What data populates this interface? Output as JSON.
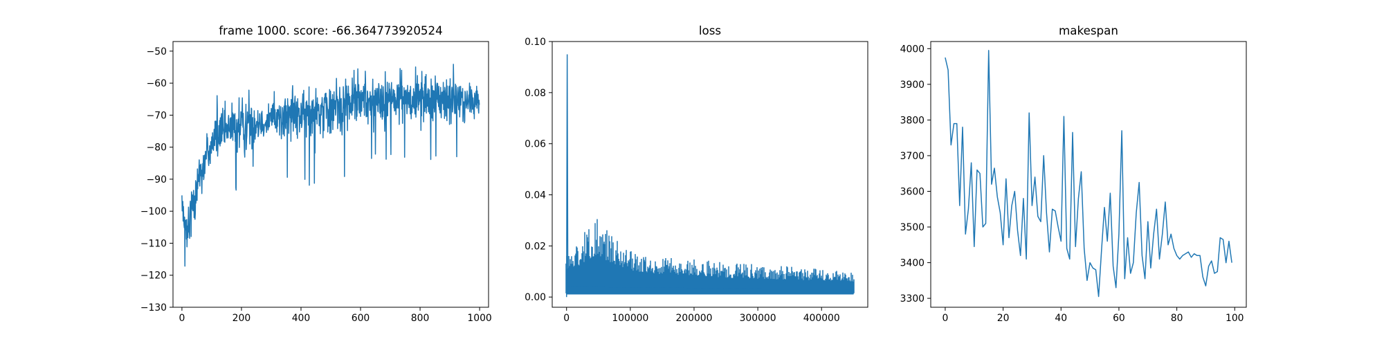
{
  "chart_data": [
    {
      "type": "line",
      "title": "frame 1000. score: -66.364773920524",
      "xlabel": "",
      "ylabel": "",
      "xlim": [
        -30,
        1030
      ],
      "ylim": [
        -130,
        -47
      ],
      "xticks": [
        0,
        200,
        400,
        600,
        800,
        1000
      ],
      "yticks": [
        -130,
        -120,
        -110,
        -100,
        -90,
        -80,
        -70,
        -60,
        -50
      ],
      "grid": false,
      "color": "#1f77b4",
      "x_range": [
        0,
        999
      ],
      "n_points": 1000,
      "series": [
        {
          "x": [
            0,
            10,
            18,
            30,
            50,
            80,
            100,
            120,
            150,
            200,
            250,
            300,
            400,
            500,
            600,
            700,
            800,
            900,
            1000
          ],
          "y": [
            -100,
            -104,
            -110,
            -100,
            -91,
            -84,
            -79,
            -77,
            -75,
            -73,
            -72,
            -71,
            -69,
            -67,
            -65,
            -65,
            -64,
            -65,
            -66
          ]
        }
      ],
      "band_upper": {
        "x": [
          0,
          20,
          50,
          80,
          100,
          150,
          200,
          250,
          300,
          400,
          500,
          600,
          700,
          800,
          900,
          1000
        ],
        "y": [
          -95,
          -93,
          -76,
          -68,
          -62,
          -62,
          -63,
          -61,
          -61,
          -60,
          -58,
          -53,
          -54,
          -52,
          -53,
          -60
        ]
      },
      "band_lower": {
        "x": [
          0,
          20,
          50,
          80,
          100,
          150,
          200,
          250,
          300,
          400,
          500,
          600,
          700,
          800,
          900,
          1000
        ],
        "y": [
          -113,
          -126,
          -110,
          -101,
          -93,
          -86,
          -100,
          -85,
          -86,
          -93,
          -93,
          -86,
          -84,
          -84,
          -86,
          -77
        ]
      }
    },
    {
      "type": "line",
      "title": "loss",
      "xlabel": "",
      "ylabel": "",
      "xlim": [
        -22500,
        472500
      ],
      "ylim": [
        -0.004,
        0.1
      ],
      "xticks": [
        0,
        100000,
        200000,
        300000,
        400000
      ],
      "yticks": [
        0.0,
        0.02,
        0.04,
        0.06,
        0.08,
        0.1
      ],
      "ytick_labels": [
        "0.00",
        "0.02",
        "0.04",
        "0.06",
        "0.08",
        "0.10"
      ],
      "grid": false,
      "color": "#1f77b4",
      "spike": {
        "x": 1000,
        "y": 0.095
      },
      "series": [
        {
          "x": [
            0,
            20000,
            50000,
            80000,
            100000,
            150000,
            200000,
            250000,
            300000,
            350000,
            400000,
            450000
          ],
          "y": [
            0.006,
            0.007,
            0.008,
            0.007,
            0.006,
            0.005,
            0.005,
            0.004,
            0.004,
            0.004,
            0.004,
            0.004
          ]
        }
      ],
      "band_upper": {
        "x": [
          0,
          20000,
          45000,
          80000,
          100000,
          150000,
          200000,
          250000,
          300000,
          350000,
          400000,
          450000
        ],
        "y": [
          0.018,
          0.022,
          0.032,
          0.022,
          0.018,
          0.016,
          0.015,
          0.014,
          0.013,
          0.012,
          0.011,
          0.01
        ]
      },
      "band_lower": {
        "x": [
          0,
          450000
        ],
        "y": [
          0.001,
          0.001
        ]
      }
    },
    {
      "type": "line",
      "title": "makespan",
      "xlabel": "",
      "ylabel": "",
      "xlim": [
        -5,
        104
      ],
      "ylim": [
        3275,
        4020
      ],
      "xticks": [
        0,
        20,
        40,
        60,
        80,
        100
      ],
      "yticks": [
        3300,
        3400,
        3500,
        3600,
        3700,
        3800,
        3900,
        4000
      ],
      "grid": false,
      "color": "#1f77b4",
      "series": [
        {
          "x": [
            0,
            1,
            2,
            3,
            4,
            5,
            6,
            7,
            8,
            9,
            10,
            11,
            12,
            13,
            14,
            15,
            16,
            17,
            18,
            19,
            20,
            21,
            22,
            23,
            24,
            25,
            26,
            27,
            28,
            29,
            30,
            31,
            32,
            33,
            34,
            35,
            36,
            37,
            38,
            39,
            40,
            41,
            42,
            43,
            44,
            45,
            46,
            47,
            48,
            49,
            50,
            51,
            52,
            53,
            54,
            55,
            56,
            57,
            58,
            59,
            60,
            61,
            62,
            63,
            64,
            65,
            66,
            67,
            68,
            69,
            70,
            71,
            72,
            73,
            74,
            75,
            76,
            77,
            78,
            79,
            80,
            81,
            82,
            83,
            84,
            85,
            86,
            87,
            88,
            89,
            90,
            91,
            92,
            93,
            94,
            95,
            96,
            97,
            98,
            99
          ],
          "y": [
            3975,
            3940,
            3730,
            3790,
            3790,
            3560,
            3780,
            3480,
            3550,
            3680,
            3445,
            3660,
            3650,
            3500,
            3510,
            3995,
            3620,
            3665,
            3585,
            3540,
            3450,
            3635,
            3470,
            3560,
            3600,
            3490,
            3420,
            3580,
            3410,
            3820,
            3560,
            3640,
            3530,
            3515,
            3700,
            3540,
            3430,
            3550,
            3545,
            3500,
            3460,
            3810,
            3440,
            3410,
            3765,
            3445,
            3580,
            3655,
            3440,
            3350,
            3400,
            3385,
            3380,
            3305,
            3435,
            3555,
            3460,
            3595,
            3390,
            3330,
            3480,
            3770,
            3355,
            3470,
            3370,
            3400,
            3540,
            3625,
            3420,
            3355,
            3515,
            3385,
            3480,
            3550,
            3410,
            3480,
            3570,
            3450,
            3480,
            3440,
            3420,
            3410,
            3420,
            3425,
            3430,
            3415,
            3425,
            3420,
            3420,
            3360,
            3335,
            3390,
            3405,
            3370,
            3375,
            3470,
            3465,
            3400,
            3460,
            3400
          ]
        }
      ]
    }
  ]
}
